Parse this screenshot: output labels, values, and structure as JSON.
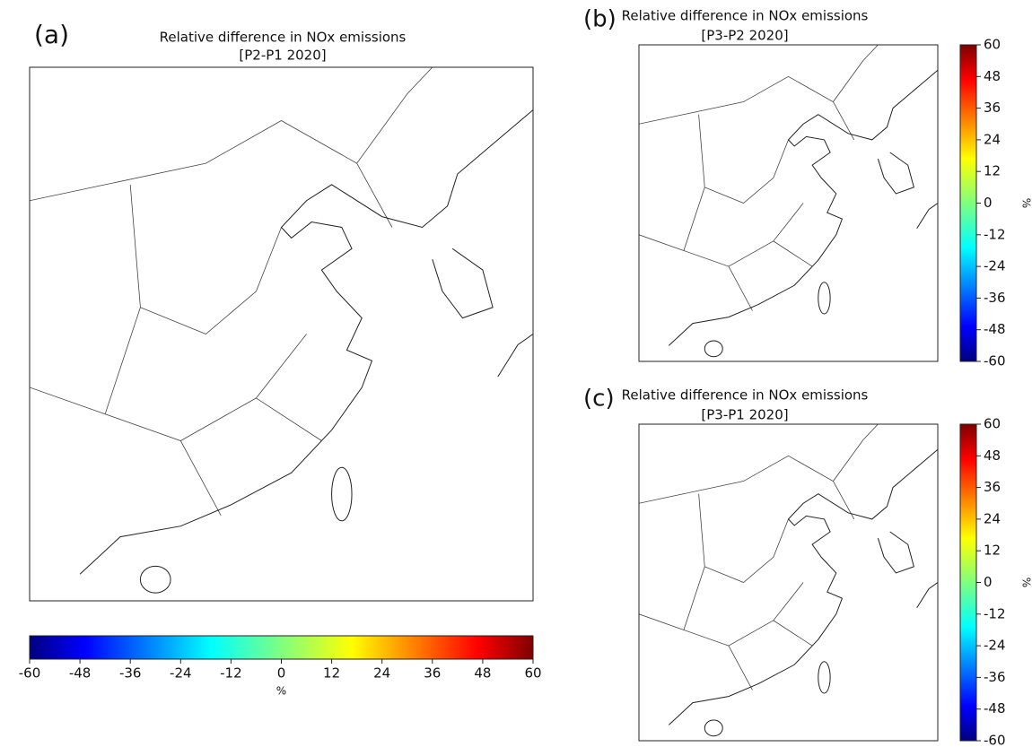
{
  "panels": [
    {
      "label": "(a)",
      "title": "Relative difference in NOx emissions",
      "subtitle": "[P2-P1 2020]",
      "colorbar": {
        "orientation": "horizontal",
        "colormap": "jet",
        "label": "%",
        "lim": [
          -60,
          60
        ],
        "ticks": [
          -60,
          -48,
          -36,
          -24,
          -12,
          0,
          12,
          24,
          36,
          48,
          60
        ]
      }
    },
    {
      "label": "(b)",
      "title": "Relative difference in NOx emissions",
      "subtitle": "[P3-P2 2020]",
      "colorbar": {
        "orientation": "vertical",
        "colormap": "jet",
        "label": "%",
        "lim": [
          -60,
          60
        ],
        "ticks": [
          -60,
          -48,
          -36,
          -24,
          -12,
          0,
          12,
          24,
          36,
          48,
          60
        ]
      }
    },
    {
      "label": "(c)",
      "title": "Relative difference in NOx emissions",
      "subtitle": "[P3-P1 2020]",
      "colorbar": {
        "orientation": "vertical",
        "colormap": "jet",
        "label": "%",
        "lim": [
          -60,
          60
        ],
        "ticks": [
          -60,
          -48,
          -36,
          -24,
          -12,
          0,
          12,
          24,
          36,
          48,
          60
        ]
      }
    }
  ]
}
